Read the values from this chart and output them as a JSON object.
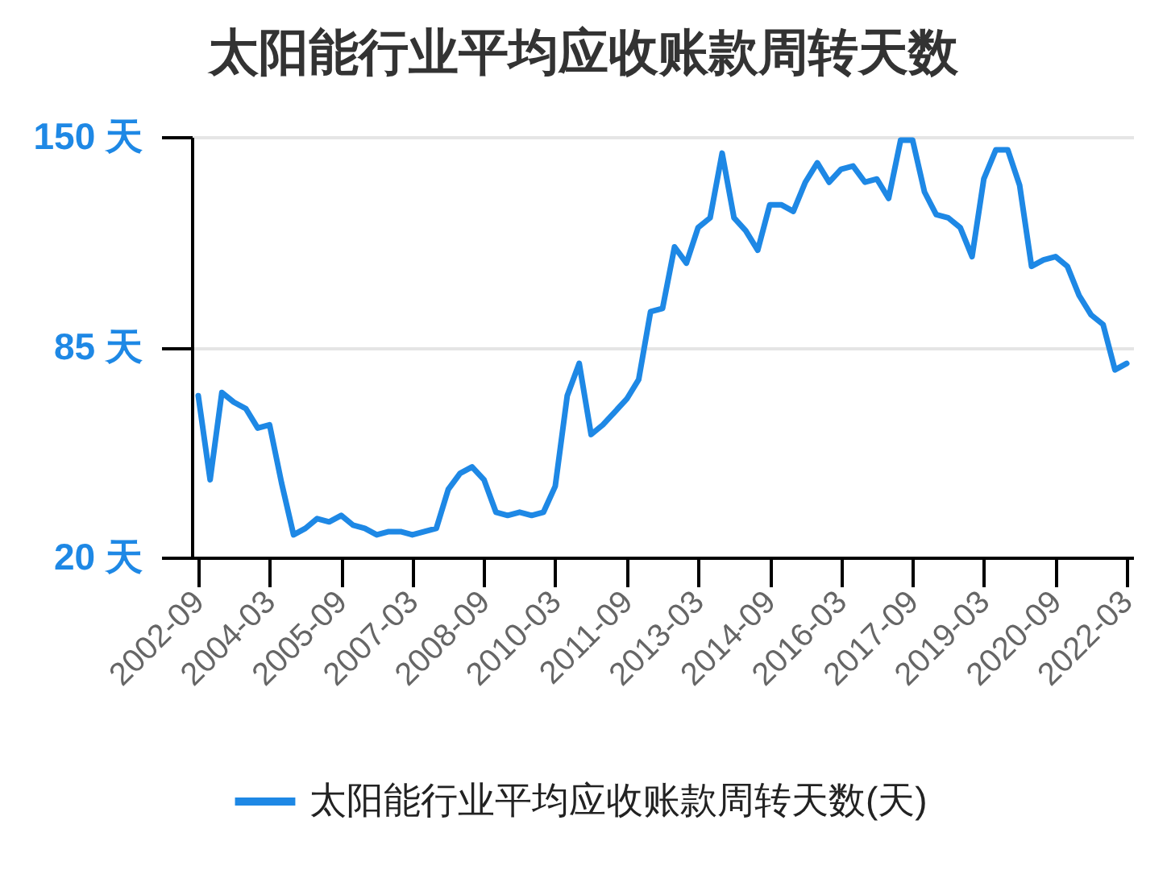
{
  "chart_data": {
    "type": "line",
    "title": "太阳能行业平均应收账款周转天数",
    "x": [
      "2002-09",
      "2002-12",
      "2003-03",
      "2003-06",
      "2003-09",
      "2003-12",
      "2004-03",
      "2004-06",
      "2004-09",
      "2004-12",
      "2005-03",
      "2005-06",
      "2005-09",
      "2005-12",
      "2006-03",
      "2006-06",
      "2006-09",
      "2006-12",
      "2007-03",
      "2007-06",
      "2007-09",
      "2007-12",
      "2008-03",
      "2008-06",
      "2008-09",
      "2008-12",
      "2009-03",
      "2009-06",
      "2009-09",
      "2009-12",
      "2010-03",
      "2010-06",
      "2010-09",
      "2010-12",
      "2011-03",
      "2011-06",
      "2011-09",
      "2011-12",
      "2012-03",
      "2012-06",
      "2012-09",
      "2012-12",
      "2013-03",
      "2013-06",
      "2013-09",
      "2013-12",
      "2014-03",
      "2014-06",
      "2014-09",
      "2014-12",
      "2015-03",
      "2015-06",
      "2015-09",
      "2015-12",
      "2016-03",
      "2016-06",
      "2016-09",
      "2016-12",
      "2017-03",
      "2017-06",
      "2017-09",
      "2017-12",
      "2018-03",
      "2018-06",
      "2018-09",
      "2018-12",
      "2019-03",
      "2019-06",
      "2019-09",
      "2019-12",
      "2020-03",
      "2020-06",
      "2020-09",
      "2020-12",
      "2021-03",
      "2021-06",
      "2021-09",
      "2021-12",
      "2022-03"
    ],
    "series": [
      {
        "name": "太阳能行业平均应收账款周转天数(天)",
        "color": "#1e88e5",
        "values": [
          70,
          44,
          71,
          68,
          66,
          60,
          61,
          43,
          27,
          29,
          32,
          31,
          33,
          30,
          29,
          27,
          28,
          28,
          27,
          28,
          29,
          41,
          46,
          48,
          44,
          34,
          33,
          34,
          33,
          34,
          42,
          70,
          80,
          58,
          61,
          65,
          69,
          75,
          96,
          97,
          116,
          111,
          122,
          125,
          145,
          125,
          121,
          115,
          129,
          129,
          127,
          136,
          142,
          136,
          140,
          141,
          136,
          137,
          131,
          149,
          149,
          133,
          126,
          125,
          122,
          113,
          137,
          146,
          146,
          135,
          110,
          112,
          113,
          110,
          101,
          95,
          92,
          78,
          80
        ]
      }
    ],
    "xlim": [
      "2002-09",
      "2022-03"
    ],
    "xticks": [
      "2002-09",
      "2004-03",
      "2005-09",
      "2007-03",
      "2008-09",
      "2010-03",
      "2011-09",
      "2013-03",
      "2014-09",
      "2016-03",
      "2017-09",
      "2019-03",
      "2020-09",
      "2022-03"
    ],
    "ylim": [
      20,
      150
    ],
    "yticks": [
      {
        "value": 20,
        "label": "20 天"
      },
      {
        "value": 85,
        "label": "85 天"
      },
      {
        "value": 150,
        "label": "150 天"
      }
    ],
    "grid": "y",
    "legend": "bottom"
  }
}
